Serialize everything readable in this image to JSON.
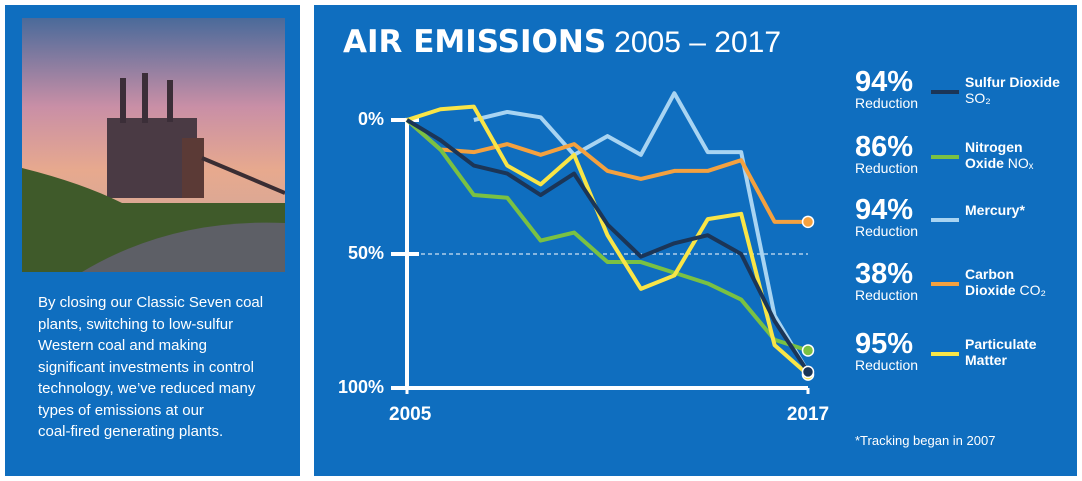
{
  "sidebar": {
    "text_lines": [
      "By closing our Classic Seven coal",
      "plants, switching to low-sulfur",
      "Western coal and making",
      "significant investments in control",
      "technology, we’ve reduced many",
      "types of emissions at our",
      "coal-fired generating plants."
    ]
  },
  "chart_data": {
    "type": "line",
    "title": "AIR EMISSIONS",
    "subtitle": "2005 – 2017",
    "x": [
      2005,
      2006,
      2007,
      2008,
      2009,
      2010,
      2011,
      2012,
      2013,
      2014,
      2015,
      2016,
      2017
    ],
    "xlim": [
      2005,
      2017
    ],
    "xticks": [
      2005,
      2017
    ],
    "ylim": [
      -12,
      100
    ],
    "y_inverted": true,
    "yticks": [
      {
        "value": 0,
        "label": "0%"
      },
      {
        "value": 50,
        "label": "50%"
      },
      {
        "value": 100,
        "label": "100%"
      }
    ],
    "reference_line": 50,
    "series": [
      {
        "name": "Sulfur Dioxide",
        "formula": "SO₂",
        "reduction": "94%",
        "reduction_caption": "Reduction",
        "color": "#1b3557",
        "end_marker": true,
        "values": [
          0,
          7.5,
          17,
          20,
          28,
          20,
          39,
          51,
          46,
          43,
          50,
          75,
          94
        ]
      },
      {
        "name": "Nitrogen Oxide",
        "formula": "NOₓ",
        "reduction": "86%",
        "reduction_caption": "Reduction",
        "color": "#7ac143",
        "end_marker": true,
        "values": [
          0,
          11,
          28,
          29,
          45,
          42,
          53,
          53,
          57,
          61,
          67,
          82,
          86
        ]
      },
      {
        "name": "Mercury*",
        "reduction": "94%",
        "reduction_caption": "Reduction",
        "color": "#a8d4f2",
        "end_marker": false,
        "values": [
          null,
          null,
          0,
          -3,
          -1,
          13,
          6,
          13,
          -10,
          12,
          12,
          73,
          94
        ]
      },
      {
        "name": "Carbon Dioxide",
        "formula": "CO₂",
        "reduction": "38%",
        "reduction_caption": "Reduction",
        "color": "#f4a13f",
        "end_marker": true,
        "values": [
          0,
          11,
          12,
          9,
          13,
          9,
          19,
          22,
          19,
          19,
          15,
          38,
          38
        ]
      },
      {
        "name": "Particulate Matter",
        "reduction": "95%",
        "reduction_caption": "Reduction",
        "color": "#f9e547",
        "end_marker": true,
        "values": [
          0,
          -4,
          -5,
          17,
          24,
          13,
          43,
          63,
          58,
          37,
          35,
          84,
          95
        ]
      }
    ],
    "footnote": "*Tracking began in 2007"
  }
}
